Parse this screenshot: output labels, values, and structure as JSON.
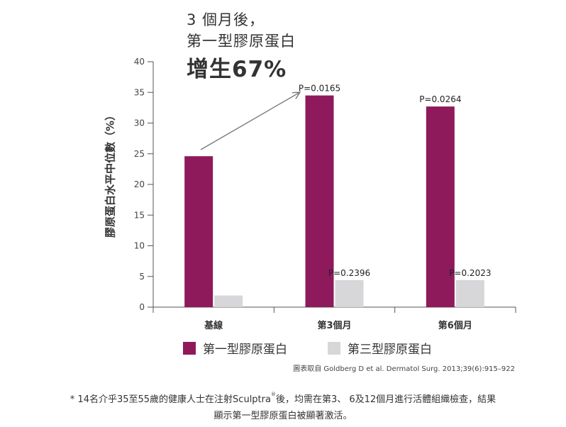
{
  "chart_data": {
    "type": "bar",
    "categories": [
      "基線",
      "第3個月",
      "第6個月"
    ],
    "series": [
      {
        "name": "第一型膠原蛋白",
        "color": "#8e1a5b",
        "values": [
          24.6,
          34.5,
          32.7
        ]
      },
      {
        "name": "第三型膠原蛋白",
        "color": "#d7d7d9",
        "values": [
          1.9,
          4.4,
          4.4
        ]
      }
    ],
    "ylabel": "膠原蛋白水平中位數（%）",
    "ylim": [
      0,
      40
    ],
    "yticks": [
      0,
      5,
      10,
      15,
      20,
      25,
      30,
      35,
      40
    ],
    "pvalues": [
      {
        "series": 0,
        "category": 1,
        "text": "P=0.0165"
      },
      {
        "series": 1,
        "category": 1,
        "text": "P=0.2396"
      },
      {
        "series": 0,
        "category": 2,
        "text": "P=0.0264"
      },
      {
        "series": 1,
        "category": 2,
        "text": "P=0.2023"
      }
    ],
    "annotation": {
      "line1": "3 個月後，",
      "line2": "第一型膠原蛋白",
      "line3": "增生67%"
    },
    "legend": [
      "第一型膠原蛋白",
      "第三型膠原蛋白"
    ]
  },
  "source": "圖表取自 Goldberg D et al. Dermatol Surg. 2013;39(6):915–922",
  "footnote": {
    "line1_a": "* 14名介乎35至55歲的健康人士在注射Sculptra",
    "reg": "®",
    "line1_b": "後，均需在第3、 6及12個月進行活體組織檢查，結果",
    "line2": "顯示第一型膠原蛋白被顯著激活。"
  }
}
